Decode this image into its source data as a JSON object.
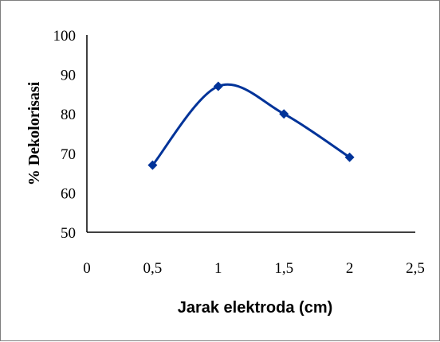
{
  "chart_data": {
    "type": "line",
    "title": "",
    "xlabel": "Jarak elektroda (cm)",
    "ylabel": "% Dekolorisasi",
    "xlim": [
      0,
      2.5
    ],
    "ylim": [
      50,
      100
    ],
    "x_ticks": [
      "0",
      "0,5",
      "1",
      "1,5",
      "2",
      "2,5"
    ],
    "y_ticks": [
      "50",
      "60",
      "70",
      "80",
      "90",
      "100"
    ],
    "x_tick_values": [
      0,
      0.5,
      1,
      1.5,
      2,
      2.5
    ],
    "y_tick_values": [
      50,
      60,
      70,
      80,
      90,
      100
    ],
    "grid": false,
    "legend": "none",
    "smooth": true,
    "series": [
      {
        "color": "#003399",
        "marker": "diamond",
        "x": [
          0.5,
          1,
          1.5,
          2
        ],
        "y": [
          67,
          87,
          80,
          69
        ]
      }
    ]
  }
}
